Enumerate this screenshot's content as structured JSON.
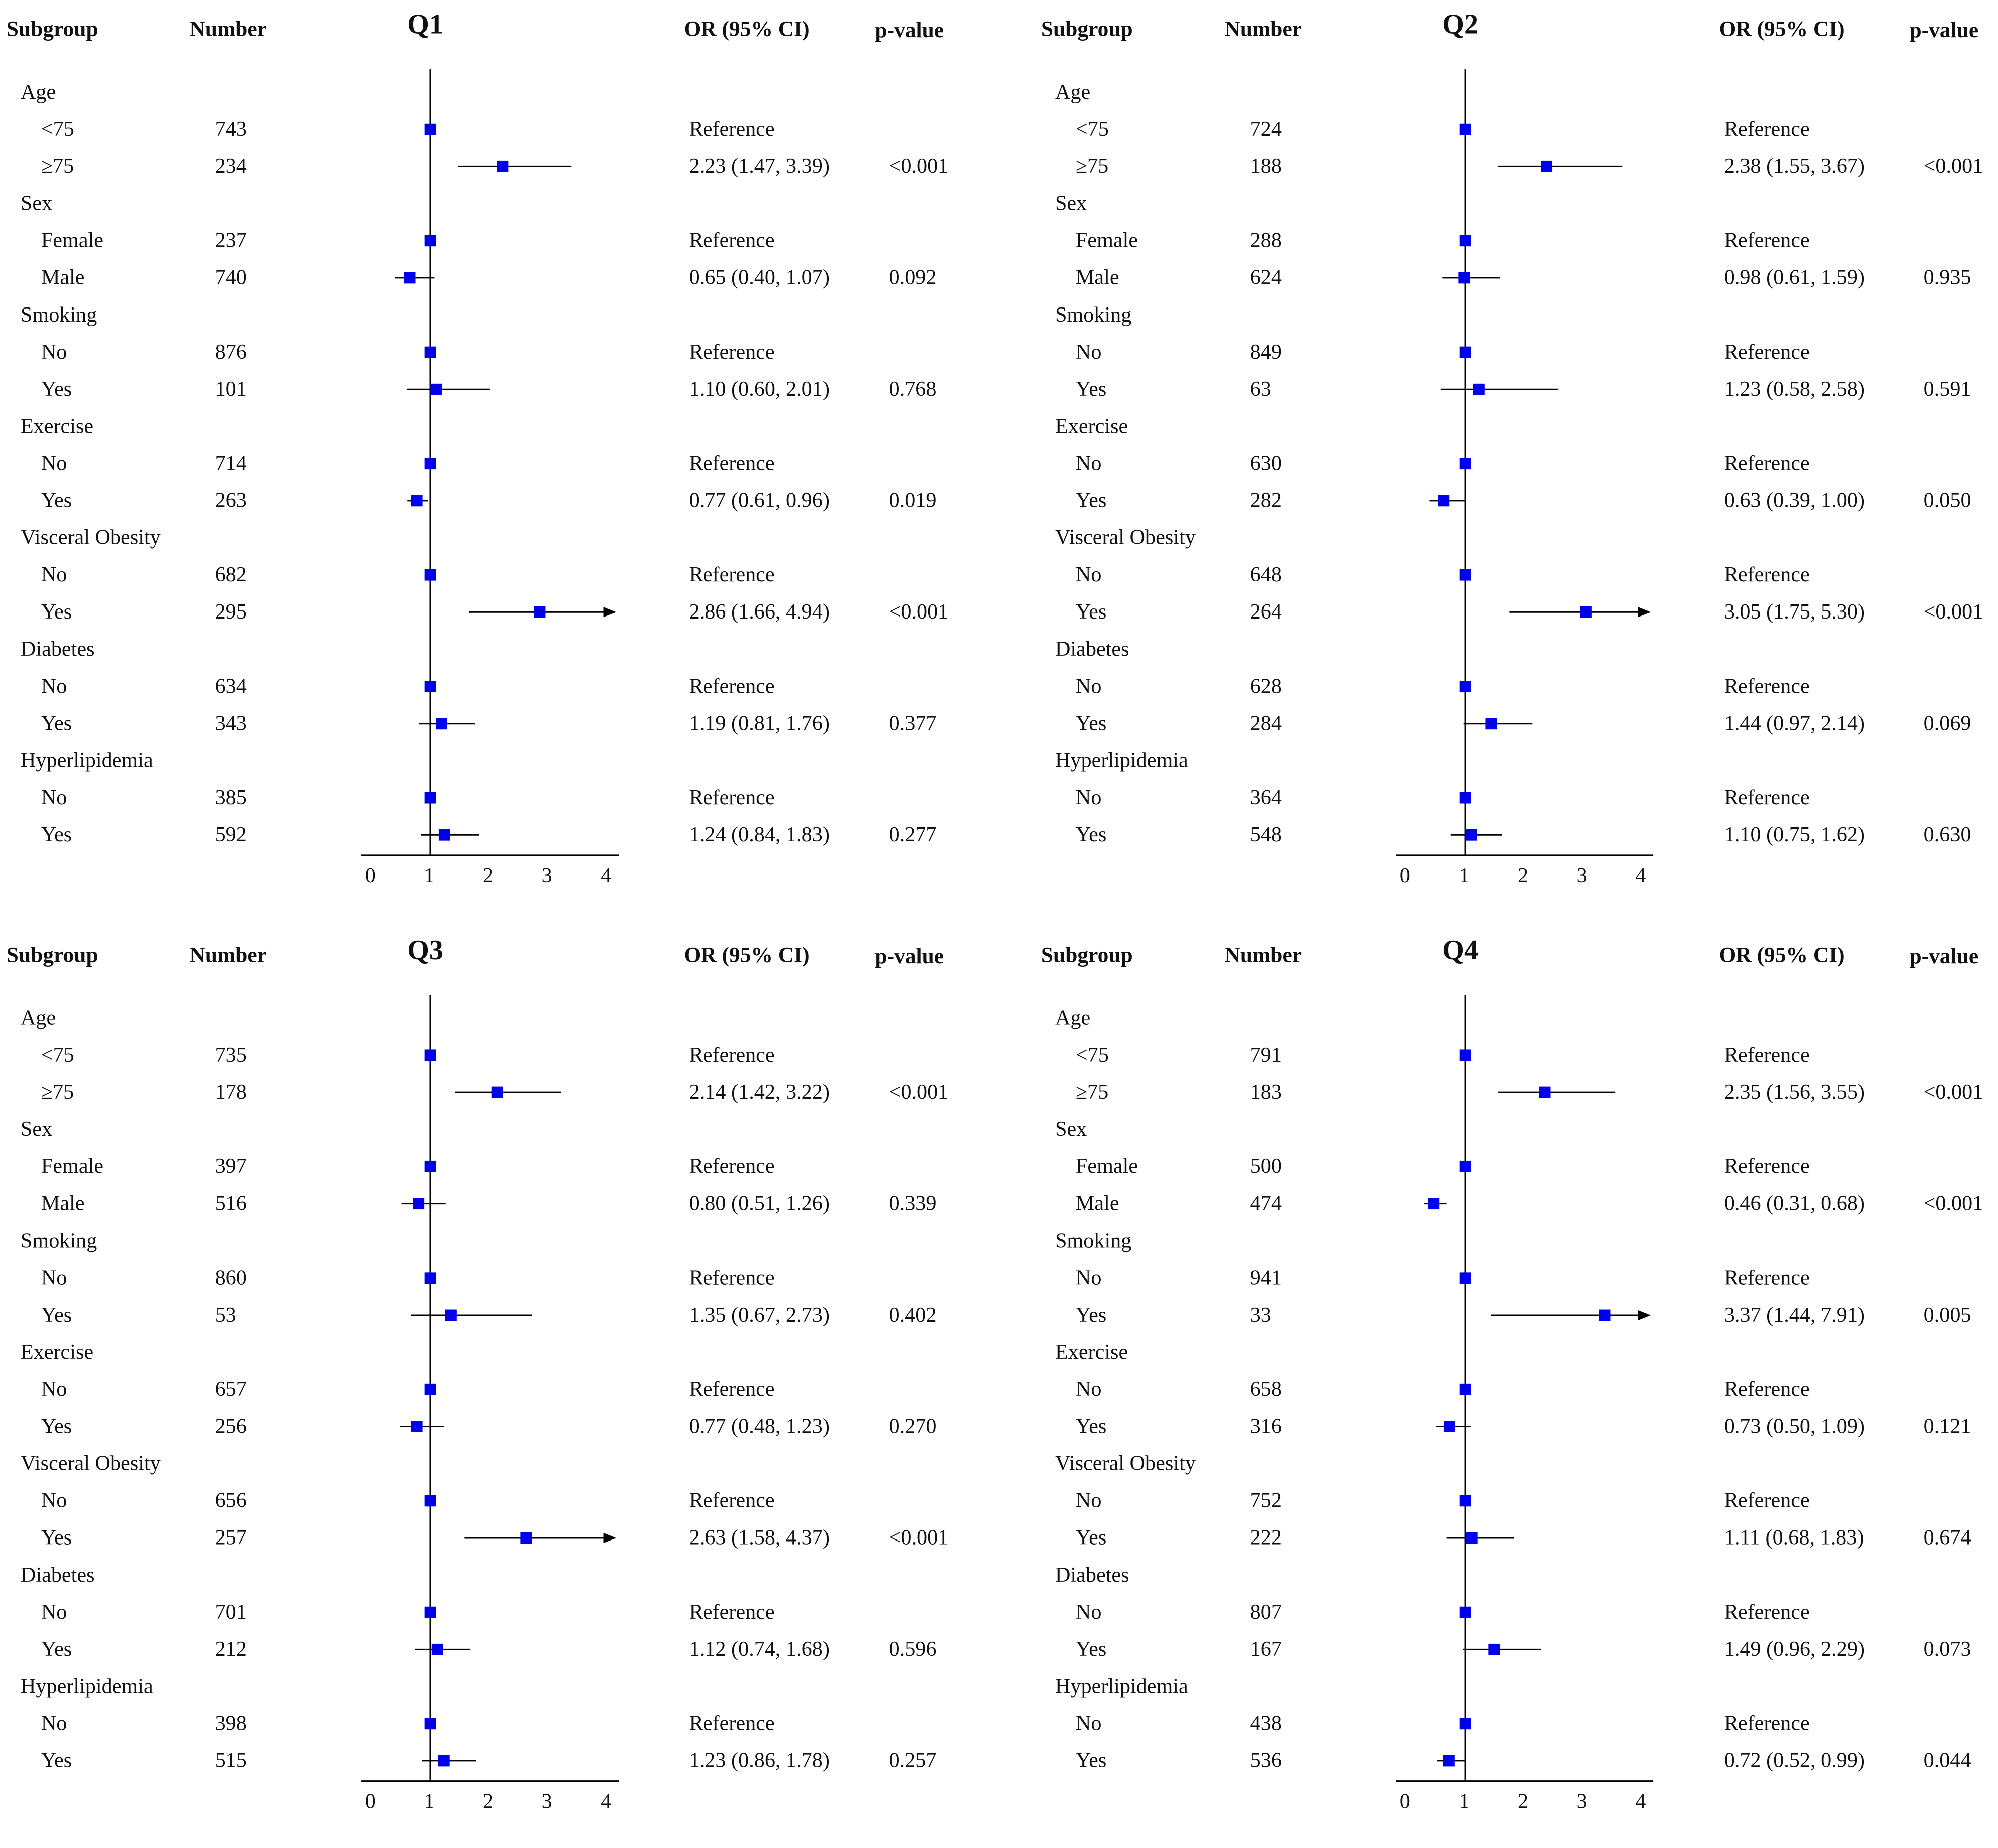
{
  "headers": {
    "subgroup": "Subgroup",
    "number": "Number",
    "or": "OR (95% CI)",
    "p": "p-value"
  },
  "chart_data": {
    "type": "forest",
    "xlim": [
      0,
      4
    ],
    "xticks": [
      "0",
      "1",
      "2",
      "3",
      "4"
    ],
    "reference_line": 1,
    "colors": {
      "marker": "#0000ee",
      "line": "#000000"
    },
    "panels": [
      {
        "title": "Q1",
        "groups": [
          {
            "name": "Age",
            "levels": [
              {
                "label": "<75",
                "n": "743",
                "or": 1,
                "text": "Reference",
                "p": ""
              },
              {
                "label": "≥75",
                "n": "234",
                "or": 2.23,
                "lo": 1.47,
                "hi": 3.39,
                "text": "2.23 (1.47, 3.39)",
                "p": "<0.001"
              }
            ]
          },
          {
            "name": "Sex",
            "levels": [
              {
                "label": "Female",
                "n": "237",
                "or": 1,
                "text": "Reference",
                "p": ""
              },
              {
                "label": "Male",
                "n": "740",
                "or": 0.65,
                "lo": 0.4,
                "hi": 1.07,
                "text": "0.65 (0.40, 1.07)",
                "p": "0.092"
              }
            ]
          },
          {
            "name": "Smoking",
            "levels": [
              {
                "label": "No",
                "n": "876",
                "or": 1,
                "text": "Reference",
                "p": ""
              },
              {
                "label": "Yes",
                "n": "101",
                "or": 1.1,
                "lo": 0.6,
                "hi": 2.01,
                "text": "1.10 (0.60, 2.01)",
                "p": "0.768"
              }
            ]
          },
          {
            "name": "Exercise",
            "levels": [
              {
                "label": "No",
                "n": "714",
                "or": 1,
                "text": "Reference",
                "p": ""
              },
              {
                "label": "Yes",
                "n": "263",
                "or": 0.77,
                "lo": 0.61,
                "hi": 0.96,
                "text": "0.77 (0.61, 0.96)",
                "p": "0.019"
              }
            ]
          },
          {
            "name": "Visceral Obesity",
            "levels": [
              {
                "label": "No",
                "n": "682",
                "or": 1,
                "text": "Reference",
                "p": ""
              },
              {
                "label": "Yes",
                "n": "295",
                "or": 2.86,
                "lo": 1.66,
                "hi": 4.94,
                "text": "2.86 (1.66, 4.94)",
                "p": "<0.001"
              }
            ]
          },
          {
            "name": "Diabetes",
            "levels": [
              {
                "label": "No",
                "n": "634",
                "or": 1,
                "text": "Reference",
                "p": ""
              },
              {
                "label": "Yes",
                "n": "343",
                "or": 1.19,
                "lo": 0.81,
                "hi": 1.76,
                "text": "1.19 (0.81, 1.76)",
                "p": "0.377"
              }
            ]
          },
          {
            "name": "Hyperlipidemia",
            "levels": [
              {
                "label": "No",
                "n": "385",
                "or": 1,
                "text": "Reference",
                "p": ""
              },
              {
                "label": "Yes",
                "n": "592",
                "or": 1.24,
                "lo": 0.84,
                "hi": 1.83,
                "text": "1.24 (0.84, 1.83)",
                "p": "0.277"
              }
            ]
          }
        ]
      },
      {
        "title": "Q2",
        "groups": [
          {
            "name": "Age",
            "levels": [
              {
                "label": "<75",
                "n": "724",
                "or": 1,
                "text": "Reference",
                "p": ""
              },
              {
                "label": "≥75",
                "n": "188",
                "or": 2.38,
                "lo": 1.55,
                "hi": 3.67,
                "text": "2.38 (1.55, 3.67)",
                "p": "<0.001"
              }
            ]
          },
          {
            "name": "Sex",
            "levels": [
              {
                "label": "Female",
                "n": "288",
                "or": 1,
                "text": "Reference",
                "p": ""
              },
              {
                "label": "Male",
                "n": "624",
                "or": 0.98,
                "lo": 0.61,
                "hi": 1.59,
                "text": "0.98 (0.61, 1.59)",
                "p": "0.935"
              }
            ]
          },
          {
            "name": "Smoking",
            "levels": [
              {
                "label": "No",
                "n": "849",
                "or": 1,
                "text": "Reference",
                "p": ""
              },
              {
                "label": "Yes",
                "n": "63",
                "or": 1.23,
                "lo": 0.58,
                "hi": 2.58,
                "text": "1.23 (0.58, 2.58)",
                "p": "0.591"
              }
            ]
          },
          {
            "name": "Exercise",
            "levels": [
              {
                "label": "No",
                "n": "630",
                "or": 1,
                "text": "Reference",
                "p": ""
              },
              {
                "label": "Yes",
                "n": "282",
                "or": 0.63,
                "lo": 0.39,
                "hi": 1.0,
                "text": "0.63 (0.39, 1.00)",
                "p": "0.050"
              }
            ]
          },
          {
            "name": "Visceral Obesity",
            "levels": [
              {
                "label": "No",
                "n": "648",
                "or": 1,
                "text": "Reference",
                "p": ""
              },
              {
                "label": "Yes",
                "n": "264",
                "or": 3.05,
                "lo": 1.75,
                "hi": 5.3,
                "text": "3.05 (1.75, 5.30)",
                "p": "<0.001"
              }
            ]
          },
          {
            "name": "Diabetes",
            "levels": [
              {
                "label": "No",
                "n": "628",
                "or": 1,
                "text": "Reference",
                "p": ""
              },
              {
                "label": "Yes",
                "n": "284",
                "or": 1.44,
                "lo": 0.97,
                "hi": 2.14,
                "text": "1.44 (0.97, 2.14)",
                "p": "0.069"
              }
            ]
          },
          {
            "name": "Hyperlipidemia",
            "levels": [
              {
                "label": "No",
                "n": "364",
                "or": 1,
                "text": "Reference",
                "p": ""
              },
              {
                "label": "Yes",
                "n": "548",
                "or": 1.1,
                "lo": 0.75,
                "hi": 1.62,
                "text": "1.10 (0.75, 1.62)",
                "p": "0.630"
              }
            ]
          }
        ]
      },
      {
        "title": "Q3",
        "groups": [
          {
            "name": "Age",
            "levels": [
              {
                "label": "<75",
                "n": "735",
                "or": 1,
                "text": "Reference",
                "p": ""
              },
              {
                "label": "≥75",
                "n": "178",
                "or": 2.14,
                "lo": 1.42,
                "hi": 3.22,
                "text": "2.14 (1.42, 3.22)",
                "p": "<0.001"
              }
            ]
          },
          {
            "name": "Sex",
            "levels": [
              {
                "label": "Female",
                "n": "397",
                "or": 1,
                "text": "Reference",
                "p": ""
              },
              {
                "label": "Male",
                "n": "516",
                "or": 0.8,
                "lo": 0.51,
                "hi": 1.26,
                "text": "0.80 (0.51, 1.26)",
                "p": "0.339"
              }
            ]
          },
          {
            "name": "Smoking",
            "levels": [
              {
                "label": "No",
                "n": "860",
                "or": 1,
                "text": "Reference",
                "p": ""
              },
              {
                "label": "Yes",
                "n": "53",
                "or": 1.35,
                "lo": 0.67,
                "hi": 2.73,
                "text": "1.35 (0.67, 2.73)",
                "p": "0.402"
              }
            ]
          },
          {
            "name": "Exercise",
            "levels": [
              {
                "label": "No",
                "n": "657",
                "or": 1,
                "text": "Reference",
                "p": ""
              },
              {
                "label": "Yes",
                "n": "256",
                "or": 0.77,
                "lo": 0.48,
                "hi": 1.23,
                "text": "0.77 (0.48, 1.23)",
                "p": "0.270"
              }
            ]
          },
          {
            "name": "Visceral Obesity",
            "levels": [
              {
                "label": "No",
                "n": "656",
                "or": 1,
                "text": "Reference",
                "p": ""
              },
              {
                "label": "Yes",
                "n": "257",
                "or": 2.63,
                "lo": 1.58,
                "hi": 4.37,
                "text": "2.63 (1.58, 4.37)",
                "p": "<0.001"
              }
            ]
          },
          {
            "name": "Diabetes",
            "levels": [
              {
                "label": "No",
                "n": "701",
                "or": 1,
                "text": "Reference",
                "p": ""
              },
              {
                "label": "Yes",
                "n": "212",
                "or": 1.12,
                "lo": 0.74,
                "hi": 1.68,
                "text": "1.12 (0.74, 1.68)",
                "p": "0.596"
              }
            ]
          },
          {
            "name": "Hyperlipidemia",
            "levels": [
              {
                "label": "No",
                "n": "398",
                "or": 1,
                "text": "Reference",
                "p": ""
              },
              {
                "label": "Yes",
                "n": "515",
                "or": 1.23,
                "lo": 0.86,
                "hi": 1.78,
                "text": "1.23 (0.86, 1.78)",
                "p": "0.257"
              }
            ]
          }
        ]
      },
      {
        "title": "Q4",
        "groups": [
          {
            "name": "Age",
            "levels": [
              {
                "label": "<75",
                "n": "791",
                "or": 1,
                "text": "Reference",
                "p": ""
              },
              {
                "label": "≥75",
                "n": "183",
                "or": 2.35,
                "lo": 1.56,
                "hi": 3.55,
                "text": "2.35 (1.56, 3.55)",
                "p": "<0.001"
              }
            ]
          },
          {
            "name": "Sex",
            "levels": [
              {
                "label": "Female",
                "n": "500",
                "or": 1,
                "text": "Reference",
                "p": ""
              },
              {
                "label": "Male",
                "n": "474",
                "or": 0.46,
                "lo": 0.31,
                "hi": 0.68,
                "text": "0.46 (0.31, 0.68)",
                "p": "<0.001"
              }
            ]
          },
          {
            "name": "Smoking",
            "levels": [
              {
                "label": "No",
                "n": "941",
                "or": 1,
                "text": "Reference",
                "p": ""
              },
              {
                "label": "Yes",
                "n": "33",
                "or": 3.37,
                "lo": 1.44,
                "hi": 7.91,
                "text": "3.37 (1.44, 7.91)",
                "p": "0.005"
              }
            ]
          },
          {
            "name": "Exercise",
            "levels": [
              {
                "label": "No",
                "n": "658",
                "or": 1,
                "text": "Reference",
                "p": ""
              },
              {
                "label": "Yes",
                "n": "316",
                "or": 0.73,
                "lo": 0.5,
                "hi": 1.09,
                "text": "0.73 (0.50, 1.09)",
                "p": "0.121"
              }
            ]
          },
          {
            "name": "Visceral Obesity",
            "levels": [
              {
                "label": "No",
                "n": "752",
                "or": 1,
                "text": "Reference",
                "p": ""
              },
              {
                "label": "Yes",
                "n": "222",
                "or": 1.11,
                "lo": 0.68,
                "hi": 1.83,
                "text": "1.11 (0.68, 1.83)",
                "p": "0.674"
              }
            ]
          },
          {
            "name": "Diabetes",
            "levels": [
              {
                "label": "No",
                "n": "807",
                "or": 1,
                "text": "Reference",
                "p": ""
              },
              {
                "label": "Yes",
                "n": "167",
                "or": 1.49,
                "lo": 0.96,
                "hi": 2.29,
                "text": "1.49 (0.96, 2.29)",
                "p": "0.073"
              }
            ]
          },
          {
            "name": "Hyperlipidemia",
            "levels": [
              {
                "label": "No",
                "n": "438",
                "or": 1,
                "text": "Reference",
                "p": ""
              },
              {
                "label": "Yes",
                "n": "536",
                "or": 0.72,
                "lo": 0.52,
                "hi": 0.99,
                "text": "0.72 (0.52, 0.99)",
                "p": "0.044"
              }
            ]
          }
        ]
      }
    ]
  }
}
